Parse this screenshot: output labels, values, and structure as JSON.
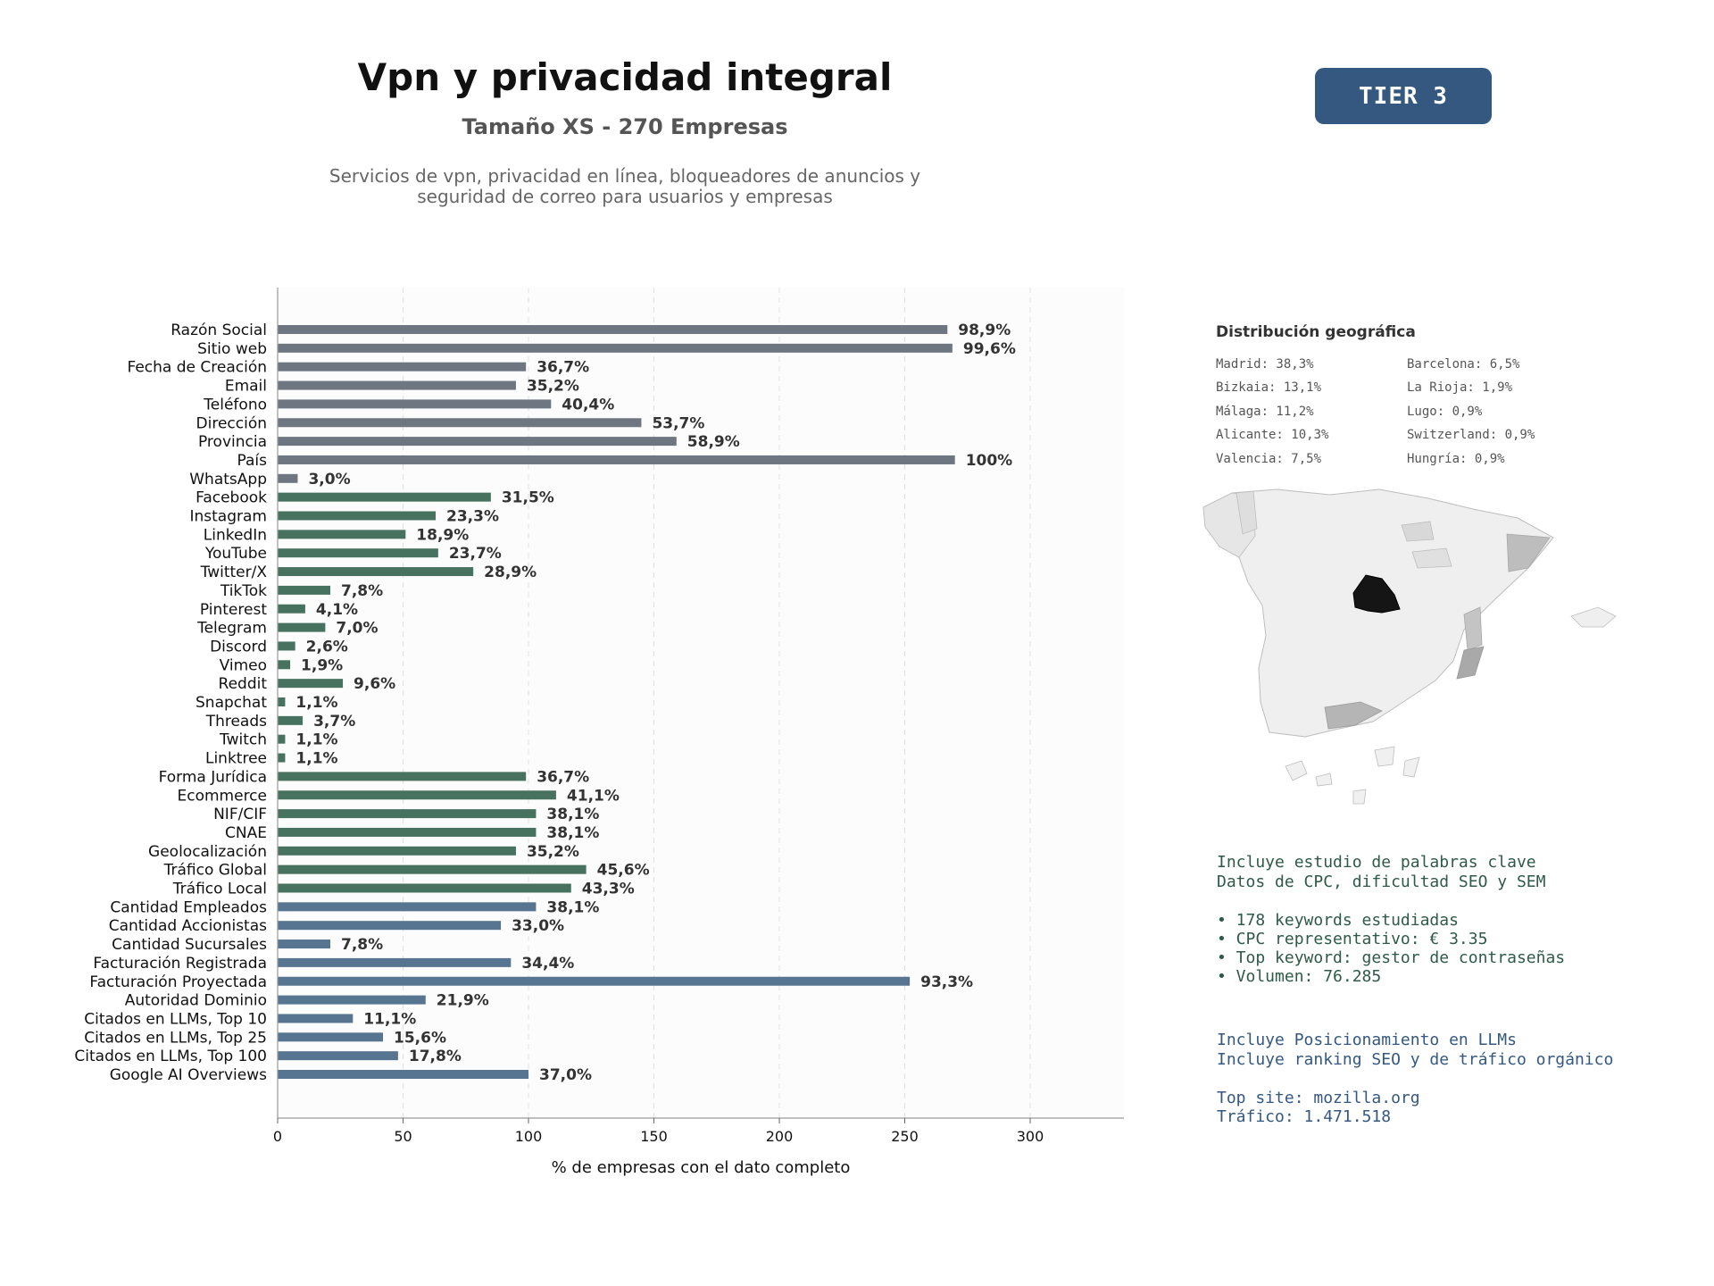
{
  "header": {
    "title": "Vpn y privacidad integral",
    "subtitle": "Tamaño XS - 270 Empresas",
    "description_line1": "Servicios de vpn, privacidad en línea, bloqueadores de anuncios y",
    "description_line2": "seguridad de correo para usuarios y empresas",
    "tier": "TIER 3"
  },
  "colors": {
    "gray": "#6e7781",
    "green": "#47725f",
    "blue": "#577590",
    "accent": "#34587f",
    "text_green": "#2e5a49"
  },
  "chart_data": {
    "type": "bar",
    "orientation": "horizontal",
    "xlabel": "% de empresas con el dato completo",
    "xlim": [
      0,
      338
    ],
    "xticks": [
      0,
      50,
      100,
      150,
      200,
      250,
      300
    ],
    "grid": "x-dashed",
    "categories": [
      "Razón Social",
      "Sitio web",
      "Fecha de Creación",
      "Email",
      "Teléfono",
      "Dirección",
      "Provincia",
      "País",
      "WhatsApp",
      "Facebook",
      "Instagram",
      "LinkedIn",
      "YouTube",
      "Twitter/X",
      "TikTok",
      "Pinterest",
      "Telegram",
      "Discord",
      "Vimeo",
      "Reddit",
      "Snapchat",
      "Threads",
      "Twitch",
      "Linktree",
      "Forma Jurídica",
      "Ecommerce",
      "NIF/CIF",
      "CNAE",
      "Geolocalización",
      "Tráfico Global",
      "Tráfico Local",
      "Cantidad Empleados",
      "Cantidad Accionistas",
      "Cantidad Sucursales",
      "Facturación Registrada",
      "Facturación Proyectada",
      "Autoridad Dominio",
      "Citados en LLMs, Top 10",
      "Citados en LLMs, Top 25",
      "Citados en LLMs, Top 100",
      "Google AI Overviews"
    ],
    "values": [
      267,
      269,
      99,
      95,
      109,
      145,
      159,
      270,
      8,
      85,
      63,
      51,
      64,
      78,
      21,
      11,
      19,
      7,
      5,
      26,
      3,
      10,
      3,
      3,
      99,
      111,
      103,
      103,
      95,
      123,
      117,
      103,
      89,
      21,
      93,
      252,
      59,
      30,
      42,
      48,
      100
    ],
    "labels": [
      "98,9%",
      "99,6%",
      "36,7%",
      "35,2%",
      "40,4%",
      "53,7%",
      "58,9%",
      "100%",
      "3,0%",
      "31,5%",
      "23,3%",
      "18,9%",
      "23,7%",
      "28,9%",
      "7,8%",
      "4,1%",
      "7,0%",
      "2,6%",
      "1,9%",
      "9,6%",
      "1,1%",
      "3,7%",
      "1,1%",
      "1,1%",
      "36,7%",
      "41,1%",
      "38,1%",
      "38,1%",
      "35,2%",
      "45,6%",
      "43,3%",
      "38,1%",
      "33,0%",
      "7,8%",
      "34,4%",
      "93,3%",
      "21,9%",
      "11,1%",
      "15,6%",
      "17,8%",
      "37,0%"
    ],
    "groups": [
      "gray",
      "gray",
      "gray",
      "gray",
      "gray",
      "gray",
      "gray",
      "gray",
      "gray",
      "green",
      "green",
      "green",
      "green",
      "green",
      "green",
      "green",
      "green",
      "green",
      "green",
      "green",
      "green",
      "green",
      "green",
      "green",
      "green",
      "green",
      "green",
      "green",
      "green",
      "green",
      "green",
      "blue",
      "blue",
      "blue",
      "blue",
      "blue",
      "blue",
      "blue",
      "blue",
      "blue",
      "blue"
    ]
  },
  "geo": {
    "title": "Distribución geográfica",
    "left": [
      "Madrid: 38,3%",
      "Bizkaia: 13,1%",
      "Málaga: 11,2%",
      "Alicante: 10,3%",
      "Valencia: 7,5%"
    ],
    "right": [
      "Barcelona: 6,5%",
      "La Rioja: 1,9%",
      "Lugo: 0,9%",
      "Switzerland: 0,9%",
      "Hungría: 0,9%"
    ]
  },
  "seo": {
    "line1": "Incluye estudio de palabras clave",
    "line2": "Datos de CPC, dificultad SEO y SEM",
    "bullet1": "• 178 keywords estudiadas",
    "bullet2": "• CPC representativo: € 3.35",
    "bullet3": "• Top keyword: gestor de contraseñas",
    "bullet4": "• Volumen: 76.285"
  },
  "llm": {
    "line1": "Incluye Posicionamiento en LLMs",
    "line2": "Incluye ranking SEO y de tráfico orgánico",
    "site": "Top site: mozilla.org",
    "traffic": "Tráfico: 1.471.518"
  }
}
